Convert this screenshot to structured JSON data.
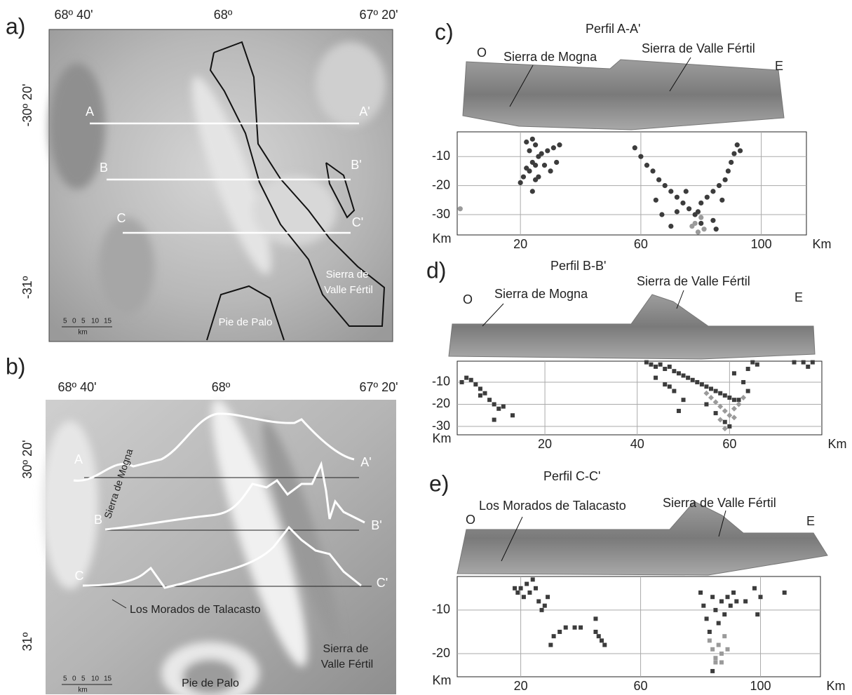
{
  "map_a": {
    "label": "a)",
    "lon_ticks": [
      "68º 40'",
      "68º",
      "67º 20'"
    ],
    "lat_ticks": [
      "-30º 20'",
      "-31º"
    ],
    "profiles": [
      "A",
      "A'",
      "B",
      "B'",
      "C",
      "C'"
    ],
    "valle_fertil": [
      "Sierra de",
      "Valle Fértil"
    ],
    "pie_de_palo": "Pie de Palo",
    "scale": [
      "5",
      "0",
      "5",
      "10",
      "15"
    ],
    "scale_unit": "km"
  },
  "map_b": {
    "label": "b)",
    "lon_ticks": [
      "68º 40'",
      "68º",
      "67º 20'"
    ],
    "lat_ticks": [
      "30º 20'",
      "31º"
    ],
    "profiles": [
      "A",
      "A'",
      "B",
      "B'",
      "C",
      "C'"
    ],
    "mogna": "Sierra de Mogna",
    "morados": "Los Morados de Talacasto",
    "valle_fertil": [
      "Sierra de",
      "Valle Fértil"
    ],
    "pie_de_palo": "Pie de Palo",
    "scale": [
      "5",
      "0",
      "5",
      "10",
      "15"
    ],
    "scale_unit": "km"
  },
  "profile_c": {
    "label": "c)",
    "title": "Perfil A-A'",
    "west": "O",
    "east": "E",
    "features": [
      "Sierra de Mogna",
      "Sierra de Valle Fértil"
    ]
  },
  "profile_d": {
    "label": "d)",
    "title": "Perfil B-B'",
    "west": "O",
    "east": "E",
    "features": [
      "Sierra de Mogna",
      "Sierra de Valle Fértil"
    ]
  },
  "profile_e": {
    "label": "e)",
    "title": "Perfil C-C'",
    "west": "O",
    "east": "E",
    "features": [
      "Los Morados de Talacasto",
      "Sierra de Valle Fértil"
    ]
  },
  "chart_data": [
    {
      "type": "scatter",
      "xlabel": "Km",
      "ylabel": "Km",
      "xlim": [
        -1,
        115
      ],
      "ylim": [
        -37,
        -1.5
      ],
      "xticks": [
        20,
        60,
        100
      ],
      "yticks": [
        -10,
        -20,
        -30
      ],
      "grid": true,
      "series": [
        {
          "color": "#3c3c3c",
          "marker": "circle",
          "x": [
            22,
            23,
            24,
            25,
            26,
            24,
            22,
            21,
            20,
            23,
            25,
            27,
            29,
            31,
            33,
            28,
            30,
            25,
            24,
            32,
            26,
            58,
            60,
            62,
            64,
            66,
            68,
            70,
            72,
            74,
            76,
            78,
            80,
            65,
            67,
            70,
            72,
            75,
            92,
            91,
            90,
            89,
            88,
            86,
            84,
            82,
            80,
            79,
            93,
            87,
            84,
            85
          ],
          "values": [
            -5,
            -8,
            -4,
            -6,
            -10,
            -12,
            -14,
            -17,
            -19,
            -15,
            -13,
            -9,
            -8,
            -7,
            -6,
            -13,
            -15,
            -18,
            -22,
            -12,
            -17,
            -7,
            -10,
            -13,
            -15,
            -18,
            -20,
            -22,
            -24,
            -26,
            -28,
            -30,
            -33,
            -25,
            -30,
            -34,
            -29,
            -22,
            -6,
            -9,
            -12,
            -15,
            -18,
            -20,
            -22,
            -24,
            -26,
            -29,
            -8,
            -25,
            -32,
            -35
          ]
        },
        {
          "color": "#9a9a9a",
          "marker": "circle",
          "x": [
            0,
            78,
            80,
            81,
            79,
            77
          ],
          "values": [
            -28,
            -33,
            -31,
            -35,
            -36,
            -34
          ]
        }
      ]
    },
    {
      "type": "scatter",
      "xlabel": "Km",
      "ylabel": "Km",
      "xlim": [
        1,
        80
      ],
      "ylim": [
        -33.8,
        -0.5
      ],
      "xticks": [
        20,
        40,
        60
      ],
      "yticks": [
        -10,
        -20,
        -30
      ],
      "grid": true,
      "series": [
        {
          "color": "#3c3c3c",
          "marker": "square",
          "x": [
            2,
            3,
            4,
            5,
            6,
            7,
            8,
            9,
            10,
            9,
            11,
            13,
            6,
            42,
            43,
            44,
            45,
            46,
            47,
            48,
            49,
            50,
            51,
            52,
            53,
            54,
            55,
            56,
            57,
            58,
            59,
            60,
            61,
            44,
            46,
            48,
            50,
            49,
            47,
            55,
            57,
            59,
            60,
            62,
            63,
            64,
            65,
            66,
            64,
            61,
            74,
            76,
            77,
            78
          ],
          "values": [
            -10,
            -8,
            -9,
            -11,
            -13,
            -15,
            -18,
            -20,
            -22,
            -27,
            -21,
            -25,
            -16,
            -1,
            -2,
            -3,
            -2,
            -4,
            -3,
            -5,
            -6,
            -7,
            -8,
            -9,
            -10,
            -11,
            -12,
            -13,
            -14,
            -15,
            -16,
            -17,
            -18,
            -8,
            -11,
            -14,
            -18,
            -23,
            -12,
            -20,
            -24,
            -28,
            -30,
            -18,
            -10,
            -4,
            -1,
            -2,
            -14,
            -6,
            -1,
            -1,
            -3,
            -1
          ]
        },
        {
          "color": "#9a9a9a",
          "marker": "diamond",
          "x": [
            55,
            56,
            57,
            58,
            59,
            60,
            61,
            59,
            58,
            62,
            63,
            61
          ],
          "values": [
            -15,
            -17,
            -19,
            -21,
            -23,
            -25,
            -26,
            -31,
            -27,
            -20,
            -17,
            -22
          ]
        }
      ]
    },
    {
      "type": "scatter",
      "xlabel": "Km",
      "ylabel": "Km",
      "xlim": [
        -1.2,
        120
      ],
      "ylim": [
        -25.3,
        -2.3
      ],
      "xticks": [
        20,
        60,
        100
      ],
      "yticks": [
        -10,
        -20
      ],
      "grid": true,
      "series": [
        {
          "color": "#3c3c3c",
          "marker": "square",
          "x": [
            18,
            19,
            20,
            21,
            22,
            23,
            24,
            25,
            26,
            27,
            28,
            29,
            30,
            31,
            33,
            35,
            38,
            40,
            45,
            46,
            47,
            48,
            45,
            80,
            81,
            82,
            83,
            84,
            85,
            86,
            87,
            88,
            89,
            90,
            91,
            92,
            95,
            98,
            100,
            99,
            108,
            84
          ],
          "values": [
            -5,
            -6,
            -5,
            -7,
            -4,
            -6,
            -3,
            -5,
            -8,
            -10,
            -9,
            -7,
            -18,
            -16,
            -15,
            -14,
            -14,
            -14,
            -15,
            -16,
            -17,
            -18,
            -12,
            -6,
            -9,
            -12,
            -15,
            -7,
            -10,
            -13,
            -8,
            -11,
            -7,
            -9,
            -6,
            -8,
            -8,
            -5,
            -7,
            -11,
            -6,
            -24
          ]
        },
        {
          "color": "#9a9a9a",
          "marker": "square",
          "x": [
            83,
            84,
            85,
            86,
            87,
            88,
            89,
            85,
            87
          ],
          "values": [
            -17,
            -19,
            -21,
            -18,
            -20,
            -16,
            -19,
            -22,
            -22
          ]
        }
      ]
    }
  ]
}
